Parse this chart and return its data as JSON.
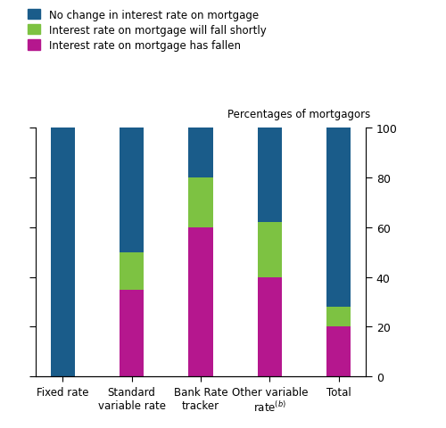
{
  "categories": [
    "Fixed rate",
    "Standard\nvariable rate",
    "Bank Rate\ntracker",
    "Other variable\nrate$^{(b)}$",
    "Total"
  ],
  "no_change": [
    100,
    50,
    20,
    38,
    72
  ],
  "will_fall": [
    0,
    15,
    20,
    22,
    8
  ],
  "has_fallen": [
    0,
    35,
    60,
    40,
    20
  ],
  "color_no_change": "#1a5c8a",
  "color_will_fall": "#7dc242",
  "color_has_fallen": "#b5178e",
  "legend_labels": [
    "No change in interest rate on mortgage",
    "Interest rate on mortgage will fall shortly",
    "Interest rate on mortgage has fallen"
  ],
  "ylabel_right": "Percentages of mortgagors",
  "ylim": [
    0,
    100
  ],
  "yticks": [
    0,
    20,
    40,
    60,
    80,
    100
  ],
  "figsize": [
    5.0,
    4.81
  ],
  "dpi": 100,
  "bar_width": 0.35
}
